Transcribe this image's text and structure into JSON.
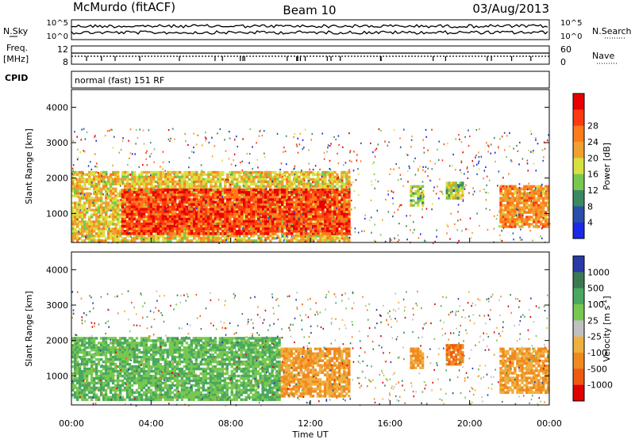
{
  "header": {
    "radar": "McMurdo (fitACF)",
    "beam": "Beam 10",
    "date": "03/Aug/2013"
  },
  "side_labels": {
    "nsky": "N.Sky",
    "nsearch": "N.Search",
    "freq": "Freq.",
    "freq_unit": "[MHz]",
    "nave": "Nave",
    "cpid": "CPID",
    "cpid_value": "normal (fast) 151 RF"
  },
  "chart_data": [
    {
      "type": "line",
      "panel": "noise",
      "y_left_ticks": [
        "10^5",
        "10^0"
      ],
      "y_right_ticks": [
        "10^5",
        "10^0"
      ],
      "series": [
        {
          "name": "N.Sky",
          "style": "solid"
        },
        {
          "name": "N.Search",
          "style": "dotted"
        }
      ],
      "xlim": [
        0,
        24
      ]
    },
    {
      "type": "line",
      "panel": "frequency",
      "y_left_ticks": [
        "12",
        "8"
      ],
      "y_right_ticks": [
        "60",
        "0"
      ],
      "series": [
        {
          "name": "Freq.",
          "style": "solid"
        },
        {
          "name": "Nave",
          "style": "dotted"
        }
      ],
      "xlim": [
        0,
        24
      ]
    },
    {
      "type": "heatmap",
      "panel": "power",
      "ylabel": "Slant Range [km]",
      "ylim": [
        180,
        4500
      ],
      "yticks": [
        1000,
        2000,
        3000,
        4000
      ],
      "xlim": [
        0,
        24
      ],
      "colorbar": {
        "label": "Power [dB]",
        "ticks": [
          4,
          8,
          12,
          16,
          20,
          24,
          28
        ],
        "colors": [
          "#1a2ae8",
          "#2a4fa8",
          "#3a8a60",
          "#78c850",
          "#d8e040",
          "#f0a030",
          "#ff7a1a",
          "#ff3a10",
          "#e80000"
        ]
      },
      "regions": [
        {
          "t0": 0.0,
          "t1": 14.0,
          "r0": 200,
          "r1": 2200,
          "value": 18,
          "desc": "main echo band"
        },
        {
          "t0": 2.5,
          "t1": 14.0,
          "r0": 400,
          "r1": 1700,
          "value": 28,
          "desc": "strong core"
        },
        {
          "t0": 17.0,
          "t1": 17.7,
          "r0": 1200,
          "r1": 1800,
          "value": 14
        },
        {
          "t0": 18.8,
          "t1": 19.7,
          "r0": 1400,
          "r1": 1900,
          "value": 14
        },
        {
          "t0": 21.5,
          "t1": 24.0,
          "r0": 600,
          "r1": 1800,
          "value": 22
        }
      ]
    },
    {
      "type": "heatmap",
      "panel": "velocity",
      "ylabel": "Slant Range [km]",
      "ylim": [
        180,
        4500
      ],
      "yticks": [
        1000,
        2000,
        3000,
        4000
      ],
      "xlim": [
        0,
        24
      ],
      "xlabel": "Time UT",
      "xticks": [
        "00:00",
        "04:00",
        "08:00",
        "12:00",
        "16:00",
        "20:00",
        "00:00"
      ],
      "colorbar": {
        "label": "Velocity [m s",
        "label_sup": "-1",
        "label_end": "]",
        "ticks": [
          1000,
          500,
          100,
          25,
          -25,
          -100,
          -500,
          -1000
        ],
        "colors": [
          "#2a3aa8",
          "#3a7a50",
          "#4aa860",
          "#78c850",
          "#c0c0c0",
          "#f0b040",
          "#f08a20",
          "#ee5a10",
          "#e00000"
        ]
      },
      "regions": [
        {
          "t0": 0.0,
          "t1": 10.5,
          "r0": 300,
          "r1": 2100,
          "value": 100,
          "desc": "green band"
        },
        {
          "t0": 10.5,
          "t1": 14.0,
          "r0": 400,
          "r1": 1800,
          "value": -100,
          "desc": "orange band"
        },
        {
          "t0": 17.0,
          "t1": 17.7,
          "r0": 1200,
          "r1": 1800,
          "value": -100
        },
        {
          "t0": 18.8,
          "t1": 19.7,
          "r0": 1300,
          "r1": 1900,
          "value": -500
        },
        {
          "t0": 21.5,
          "t1": 24.0,
          "r0": 500,
          "r1": 1800,
          "value": -100
        }
      ]
    }
  ]
}
